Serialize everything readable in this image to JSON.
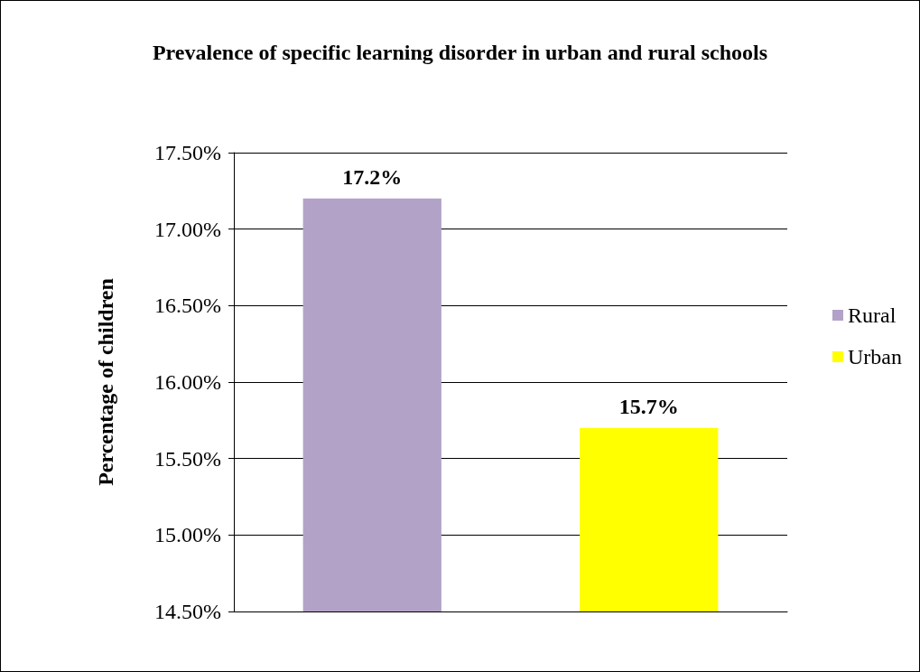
{
  "chart_data": {
    "type": "bar",
    "title": "Prevalence of specific learning disorder in urban and rural schools",
    "ylabel": "Percentage of children",
    "categories": [
      null
    ],
    "series": [
      {
        "name": "Rural",
        "color": "#b3a2c7",
        "values": [
          17.2
        ],
        "value_labels": [
          "17.2%"
        ]
      },
      {
        "name": "Urban",
        "color": "#ffff00",
        "values": [
          15.7
        ],
        "value_labels": [
          "15.7%"
        ]
      }
    ],
    "ylim": [
      14.5,
      17.5
    ],
    "yticks": [
      {
        "value": 14.5,
        "label": "14.50%"
      },
      {
        "value": 15,
        "label": "15.00%"
      },
      {
        "value": 15.5,
        "label": "15.50%"
      },
      {
        "value": 16,
        "label": "16.00%"
      },
      {
        "value": 16.5,
        "label": "16.50%"
      },
      {
        "value": 17,
        "label": "17.00%"
      },
      {
        "value": 17.5,
        "label": "17.50%"
      }
    ],
    "grid": "y",
    "legend": "right"
  }
}
